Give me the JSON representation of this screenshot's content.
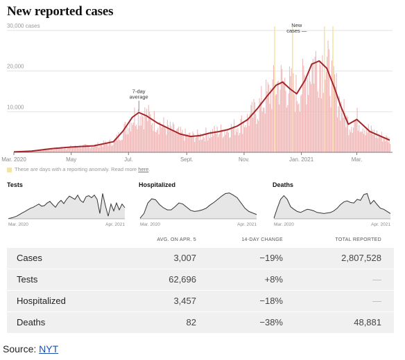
{
  "title": "New reported cases",
  "anomaly_note": {
    "text": "These are days with a reporting anomaly. Read more ",
    "link": "here",
    "end": "."
  },
  "source": {
    "label": "Source: ",
    "link": "NYT"
  },
  "colors": {
    "avg_line": "#a3262a",
    "bars": "#f0b9b9",
    "anomaly": "#f3e3a8",
    "spark_fill": "#e6e6e6",
    "spark_line": "#333333"
  },
  "chart_data": [
    {
      "type": "area",
      "title": "New reported cases",
      "ylabels": [
        "30,000 cases",
        "20,000",
        "10,000"
      ],
      "yticks": [
        30000,
        20000,
        10000
      ],
      "ylim": [
        0,
        30000
      ],
      "xticks": [
        "Mar. 2020",
        "May",
        "Jul.",
        "Sept.",
        "Nov.",
        "Jan. 2021",
        "Mar."
      ],
      "xtick_dates": [
        "2020-03-01",
        "2020-05-01",
        "2020-07-01",
        "2020-09-01",
        "2020-11-01",
        "2021-01-01",
        "2021-03-01"
      ],
      "series": [
        {
          "name": "7-day average",
          "x": [
            "2020-03-01",
            "2020-03-20",
            "2020-04-10",
            "2020-05-01",
            "2020-05-25",
            "2020-06-15",
            "2020-06-25",
            "2020-07-05",
            "2020-07-12",
            "2020-07-20",
            "2020-08-01",
            "2020-08-15",
            "2020-08-25",
            "2020-09-05",
            "2020-09-15",
            "2020-09-25",
            "2020-10-05",
            "2020-10-15",
            "2020-10-25",
            "2020-11-05",
            "2020-11-15",
            "2020-11-25",
            "2020-12-05",
            "2020-12-12",
            "2020-12-20",
            "2020-12-27",
            "2021-01-05",
            "2021-01-12",
            "2021-01-20",
            "2021-01-28",
            "2021-02-05",
            "2021-02-12",
            "2021-02-20",
            "2021-03-01",
            "2021-03-15",
            "2021-04-05"
          ],
          "y": [
            100,
            300,
            900,
            1300,
            1600,
            2600,
            5200,
            8600,
            9800,
            9000,
            7200,
            5600,
            4500,
            3900,
            4100,
            4700,
            5100,
            5600,
            6500,
            8100,
            10700,
            13700,
            16500,
            17300,
            15600,
            14400,
            17800,
            21700,
            22500,
            20700,
            16000,
            11300,
            6900,
            8100,
            5100,
            3007
          ]
        }
      ],
      "annotations": [
        {
          "text": "7-day",
          "text2": "average",
          "x": "2020-07-12",
          "y": 9800
        },
        {
          "text": "New",
          "text2": "cases —",
          "x": "2020-12-27",
          "y": 27000
        }
      ],
      "anomaly_dates": [
        "2020-12-03",
        "2020-12-22",
        "2021-01-25",
        "2021-02-03"
      ]
    },
    {
      "type": "area",
      "title": "Tests",
      "xlabels": [
        "Mar. 2020",
        "Apr. 2021"
      ],
      "y": [
        0.01,
        0.03,
        0.06,
        0.1,
        0.16,
        0.22,
        0.28,
        0.34,
        0.4,
        0.44,
        0.5,
        0.56,
        0.48,
        0.5,
        0.6,
        0.66,
        0.54,
        0.44,
        0.6,
        0.7,
        0.58,
        0.74,
        0.86,
        0.8,
        0.74,
        0.9,
        0.7,
        0.62,
        0.84,
        0.88,
        0.8,
        0.9,
        0.74,
        0.2,
        0.96,
        0.5,
        0.1,
        0.56,
        0.3,
        0.6,
        0.34,
        0.56,
        0.42
      ]
    },
    {
      "type": "area",
      "title": "Hospitalized",
      "xlabels": [
        "Mar. 2020",
        "Apr. 2021"
      ],
      "y": [
        0.02,
        0.2,
        0.6,
        0.76,
        0.72,
        0.54,
        0.42,
        0.34,
        0.34,
        0.46,
        0.6,
        0.56,
        0.44,
        0.32,
        0.28,
        0.3,
        0.34,
        0.4,
        0.52,
        0.62,
        0.74,
        0.86,
        0.96,
        0.98,
        0.9,
        0.8,
        0.6,
        0.4,
        0.28,
        0.22,
        0.16
      ]
    },
    {
      "type": "area",
      "title": "Deaths",
      "xlabels": [
        "Mar. 2020",
        "Apr. 2021"
      ],
      "y": [
        0.02,
        0.4,
        0.74,
        0.88,
        0.74,
        0.46,
        0.36,
        0.28,
        0.24,
        0.3,
        0.36,
        0.34,
        0.3,
        0.24,
        0.22,
        0.2,
        0.22,
        0.24,
        0.3,
        0.4,
        0.54,
        0.64,
        0.68,
        0.62,
        0.6,
        0.74,
        0.7,
        0.92,
        0.96,
        0.56,
        0.7,
        0.54,
        0.4,
        0.36,
        0.28,
        0.2
      ]
    },
    {
      "type": "table",
      "columns": [
        "",
        "AVG. ON APR. 5",
        "14-DAY CHANGE",
        "TOTAL REPORTED"
      ],
      "rows": [
        {
          "label": "Cases",
          "avg": "3,007",
          "change": "−19%",
          "total": "2,807,528"
        },
        {
          "label": "Tests",
          "avg": "62,696",
          "change": "+8%",
          "total": "—"
        },
        {
          "label": "Hospitalized",
          "avg": "3,457",
          "change": "−18%",
          "total": "—"
        },
        {
          "label": "Deaths",
          "avg": "82",
          "change": "−38%",
          "total": "48,881"
        }
      ]
    }
  ]
}
